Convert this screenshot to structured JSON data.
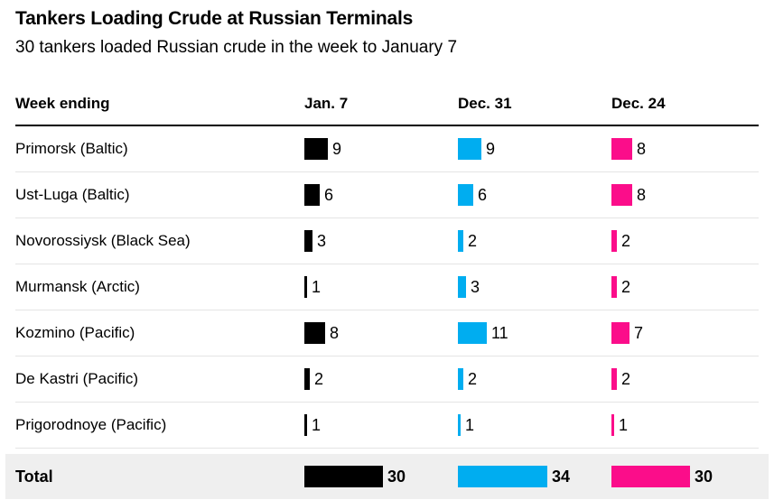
{
  "header": {
    "title": "Tankers Loading Crude at Russian Terminals",
    "subtitle": "30 tankers loaded Russian crude in the week to January 7"
  },
  "table": {
    "header": {
      "label_col": "Week ending",
      "columns": [
        "Jan. 7",
        "Dec. 31",
        "Dec. 24"
      ]
    },
    "rows": [
      {
        "label": "Primorsk (Baltic)",
        "values": [
          9,
          9,
          8
        ]
      },
      {
        "label": "Ust-Luga (Baltic)",
        "values": [
          6,
          6,
          8
        ]
      },
      {
        "label": "Novorossiysk (Black Sea)",
        "values": [
          3,
          2,
          2
        ]
      },
      {
        "label": "Murmansk (Arctic)",
        "values": [
          1,
          3,
          2
        ]
      },
      {
        "label": "Kozmino (Pacific)",
        "values": [
          8,
          11,
          7
        ]
      },
      {
        "label": "De Kastri (Pacific)",
        "values": [
          2,
          2,
          2
        ]
      },
      {
        "label": "Prigorodnoye (Pacific)",
        "values": [
          1,
          1,
          1
        ]
      }
    ],
    "total": {
      "label": "Total",
      "values": [
        30,
        34,
        30
      ]
    }
  },
  "colors": {
    "jan7_bar": "#000000",
    "dec31_bar": "#00adf0",
    "dec24_bar": "#fb0d8a",
    "total_row_background": "#efefef",
    "divider": "#e4e4e4",
    "header_rule": "#000000"
  },
  "chart_data": {
    "type": "bar",
    "orientation": "horizontal",
    "title": "Tankers Loading Crude at Russian Terminals",
    "subtitle": "30 tankers loaded Russian crude in the week to January 7",
    "categories": [
      "Primorsk (Baltic)",
      "Ust-Luga (Baltic)",
      "Novorossiysk (Black Sea)",
      "Murmansk (Arctic)",
      "Kozmino (Pacific)",
      "De Kastri (Pacific)",
      "Prigorodnoye (Pacific)",
      "Total"
    ],
    "series": [
      {
        "name": "Jan. 7",
        "color": "#000000",
        "values": [
          9,
          6,
          3,
          1,
          8,
          2,
          1,
          30
        ]
      },
      {
        "name": "Dec. 31",
        "color": "#00adf0",
        "values": [
          9,
          6,
          2,
          3,
          11,
          2,
          1,
          34
        ]
      },
      {
        "name": "Dec. 24",
        "color": "#fb0d8a",
        "values": [
          8,
          8,
          2,
          2,
          7,
          2,
          1,
          30
        ]
      }
    ],
    "value_labels_shown": true,
    "grid": false,
    "legend_position": "column-headers"
  }
}
